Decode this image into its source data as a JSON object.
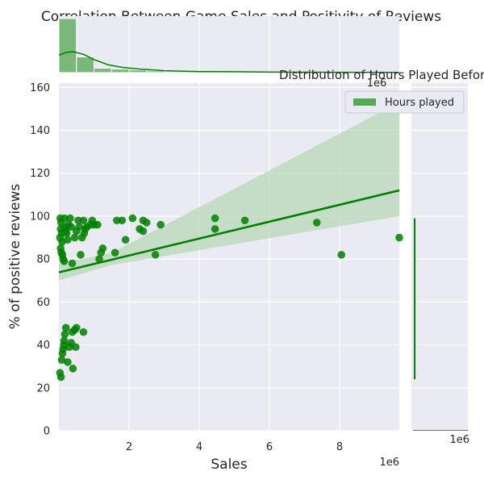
{
  "title": "Correlation Between Game Sales and Positivity of Reviews",
  "chart_data": [
    {
      "type": "scatter",
      "panel": "joint",
      "xlabel": "Sales",
      "ylabel": "% of positive reviews",
      "x_offset_label": "1e6",
      "x_scale": 1000000,
      "xlim": [
        0,
        9700000
      ],
      "ylim": [
        0,
        162
      ],
      "xticks": [
        2000000,
        4000000,
        6000000,
        8000000
      ],
      "xtick_labels": [
        "2",
        "4",
        "6",
        "8"
      ],
      "yticks": [
        0,
        20,
        40,
        60,
        80,
        100,
        120,
        140,
        160
      ],
      "ytick_labels": [
        "0",
        "20",
        "40",
        "60",
        "80",
        "100",
        "120",
        "140",
        "160"
      ],
      "grid": true,
      "point_color": "#008000",
      "points": [
        {
          "x": 40000,
          "y": 99
        },
        {
          "x": 60000,
          "y": 97
        },
        {
          "x": 50000,
          "y": 94
        },
        {
          "x": 80000,
          "y": 92
        },
        {
          "x": 30000,
          "y": 90
        },
        {
          "x": 90000,
          "y": 88
        },
        {
          "x": 50000,
          "y": 85
        },
        {
          "x": 70000,
          "y": 83
        },
        {
          "x": 100000,
          "y": 82
        },
        {
          "x": 120000,
          "y": 80
        },
        {
          "x": 150000,
          "y": 79
        },
        {
          "x": 160000,
          "y": 99
        },
        {
          "x": 180000,
          "y": 95
        },
        {
          "x": 200000,
          "y": 93
        },
        {
          "x": 220000,
          "y": 92
        },
        {
          "x": 250000,
          "y": 89
        },
        {
          "x": 280000,
          "y": 96
        },
        {
          "x": 320000,
          "y": 99
        },
        {
          "x": 350000,
          "y": 95
        },
        {
          "x": 380000,
          "y": 78
        },
        {
          "x": 450000,
          "y": 90
        },
        {
          "x": 500000,
          "y": 93
        },
        {
          "x": 550000,
          "y": 98
        },
        {
          "x": 580000,
          "y": 95
        },
        {
          "x": 620000,
          "y": 82
        },
        {
          "x": 660000,
          "y": 90
        },
        {
          "x": 700000,
          "y": 98
        },
        {
          "x": 720000,
          "y": 92
        },
        {
          "x": 750000,
          "y": 94
        },
        {
          "x": 800000,
          "y": 95
        },
        {
          "x": 900000,
          "y": 96
        },
        {
          "x": 950000,
          "y": 98
        },
        {
          "x": 1000000,
          "y": 96
        },
        {
          "x": 1100000,
          "y": 96
        },
        {
          "x": 1150000,
          "y": 80
        },
        {
          "x": 1200000,
          "y": 83
        },
        {
          "x": 1250000,
          "y": 85
        },
        {
          "x": 1600000,
          "y": 83
        },
        {
          "x": 1650000,
          "y": 98
        },
        {
          "x": 1800000,
          "y": 98
        },
        {
          "x": 1900000,
          "y": 89
        },
        {
          "x": 2100000,
          "y": 99
        },
        {
          "x": 2300000,
          "y": 94
        },
        {
          "x": 2400000,
          "y": 93
        },
        {
          "x": 2400000,
          "y": 98
        },
        {
          "x": 2500000,
          "y": 97
        },
        {
          "x": 2750000,
          "y": 82
        },
        {
          "x": 2900000,
          "y": 96
        },
        {
          "x": 4450000,
          "y": 94
        },
        {
          "x": 4450000,
          "y": 99
        },
        {
          "x": 5300000,
          "y": 98
        },
        {
          "x": 7350000,
          "y": 97
        },
        {
          "x": 8050000,
          "y": 82
        },
        {
          "x": 9700000,
          "y": 90
        },
        {
          "x": 30000,
          "y": 27
        },
        {
          "x": 60000,
          "y": 25
        },
        {
          "x": 80000,
          "y": 33
        },
        {
          "x": 100000,
          "y": 36
        },
        {
          "x": 120000,
          "y": 38
        },
        {
          "x": 140000,
          "y": 40
        },
        {
          "x": 150000,
          "y": 42
        },
        {
          "x": 170000,
          "y": 45
        },
        {
          "x": 200000,
          "y": 48
        },
        {
          "x": 250000,
          "y": 32
        },
        {
          "x": 300000,
          "y": 39
        },
        {
          "x": 350000,
          "y": 41
        },
        {
          "x": 380000,
          "y": 46
        },
        {
          "x": 400000,
          "y": 29
        },
        {
          "x": 450000,
          "y": 47
        },
        {
          "x": 480000,
          "y": 39
        },
        {
          "x": 500000,
          "y": 48
        },
        {
          "x": 700000,
          "y": 46
        }
      ],
      "regression": {
        "x0": 0,
        "y0": 73.8,
        "x1": 9700000,
        "y1": 112,
        "ci_upper_at_x0": 78,
        "ci_lower_at_x0": 70,
        "ci_upper_at_x1": 153,
        "ci_lower_at_x1": 100,
        "ci_center_x": 1500000,
        "ci_center_y": 80,
        "ci_center_halfwidth": 2.8,
        "color": "#008000",
        "band_color": "#b8d8b8"
      }
    },
    {
      "type": "histogram",
      "panel": "top-marginal",
      "bin_width": 500000,
      "bins": [
        {
          "x0": 0,
          "count": 62
        },
        {
          "x0": 500000,
          "count": 18
        },
        {
          "x0": 1000000,
          "count": 5
        },
        {
          "x0": 1500000,
          "count": 4
        },
        {
          "x0": 2000000,
          "count": 3
        },
        {
          "x0": 2500000,
          "count": 2
        }
      ],
      "count_max": 62,
      "kde": [
        {
          "x": 0,
          "y": 20
        },
        {
          "x": 200000,
          "y": 23
        },
        {
          "x": 400000,
          "y": 24
        },
        {
          "x": 700000,
          "y": 21
        },
        {
          "x": 1000000,
          "y": 15
        },
        {
          "x": 1400000,
          "y": 9
        },
        {
          "x": 1800000,
          "y": 6
        },
        {
          "x": 2300000,
          "y": 4
        },
        {
          "x": 3000000,
          "y": 2.2
        },
        {
          "x": 4000000,
          "y": 1.2
        },
        {
          "x": 5000000,
          "y": 1
        },
        {
          "x": 6000000,
          "y": 0.6
        },
        {
          "x": 7000000,
          "y": 0.5
        },
        {
          "x": 8000000,
          "y": 0.3
        },
        {
          "x": 9700000,
          "y": 0.2
        }
      ],
      "color": "#008000"
    },
    {
      "type": "histogram",
      "panel": "right-marginal",
      "title": "Distribution of Hours Played Before",
      "offset_label": "1e6",
      "x_offset_label": "1e6",
      "legend": [
        {
          "label": "Hours played",
          "color": "#5aa65a"
        }
      ],
      "legend_position": "top-right",
      "line": {
        "x": 2,
        "y_start": 24,
        "y_end": 99
      },
      "color": "#008000"
    }
  ]
}
